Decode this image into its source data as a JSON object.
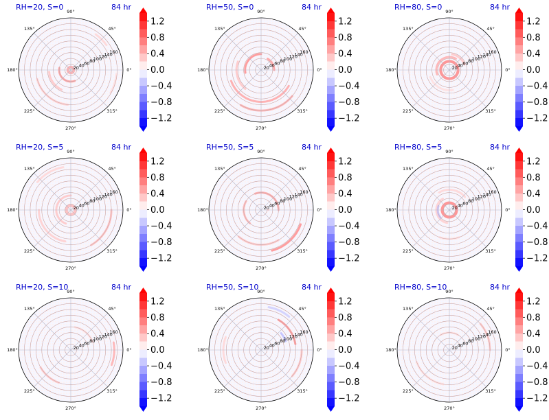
{
  "chart_data": {
    "type": "heatmap",
    "projection": "polar",
    "grid": true,
    "legend": "colorbar-right",
    "colormap": {
      "name": "bwr",
      "low": "#0000ff",
      "mid": "#ffffff",
      "high": "#ff0000"
    },
    "angle_ticks": [
      "0°",
      "45°",
      "90°",
      "135°",
      "180°",
      "225°",
      "270°",
      "315°"
    ],
    "radial_ticks": [
      "20",
      "40",
      "60",
      "80",
      "100",
      "120",
      "140",
      "160"
    ],
    "rlim": [
      0,
      180
    ],
    "colorbar_ticks": [
      "1.2",
      "0.8",
      "0.4",
      "0.0",
      "−0.4",
      "−0.8",
      "−1.2"
    ],
    "colorbar_range": [
      -1.4,
      1.4
    ],
    "panels": [
      {
        "title": "RH=20, S=0",
        "time": "84 hr",
        "features": [
          {
            "kind": "ring",
            "r": 10,
            "value": 0.5
          },
          {
            "kind": "arc",
            "r": 40,
            "from": 170,
            "to": 290,
            "value": 0.6
          },
          {
            "kind": "arc",
            "r": 75,
            "from": 185,
            "to": 245,
            "value": 0.35
          },
          {
            "kind": "arc",
            "r": 120,
            "from": 195,
            "to": 265,
            "value": 0.3
          },
          {
            "kind": "arc",
            "r": 150,
            "from": 35,
            "to": 55,
            "value": 0.25
          },
          {
            "kind": "arc",
            "r": 158,
            "from": 330,
            "to": 355,
            "value": 0.2
          }
        ]
      },
      {
        "title": "RH=50, S=0",
        "time": "84 hr",
        "features": [
          {
            "kind": "arc",
            "r": 55,
            "from": 90,
            "to": 190,
            "value": 0.7
          },
          {
            "kind": "arc",
            "r": 45,
            "from": 0,
            "to": 60,
            "value": 0.6
          },
          {
            "kind": "arc",
            "r": 110,
            "from": 200,
            "to": 330,
            "value": 0.55
          },
          {
            "kind": "arc",
            "r": 140,
            "from": 240,
            "to": 320,
            "value": 0.5
          },
          {
            "kind": "arc",
            "r": 85,
            "from": 160,
            "to": 230,
            "value": 0.35
          }
        ]
      },
      {
        "title": "RH=80, S=0",
        "time": "84 hr",
        "features": [
          {
            "kind": "ring",
            "r": 30,
            "value": 0.7
          },
          {
            "kind": "arc",
            "r": 45,
            "from": 60,
            "to": 200,
            "value": 0.5
          },
          {
            "kind": "arc",
            "r": 55,
            "from": 20,
            "to": 80,
            "value": 0.35
          },
          {
            "kind": "arc",
            "r": 70,
            "from": 200,
            "to": 280,
            "value": 0.2
          }
        ]
      },
      {
        "title": "RH=20, S=5",
        "time": "84 hr",
        "features": [
          {
            "kind": "ring",
            "r": 15,
            "value": 0.4
          },
          {
            "kind": "arc",
            "r": 50,
            "from": 90,
            "to": 250,
            "value": 0.35
          },
          {
            "kind": "arc",
            "r": 110,
            "from": 180,
            "to": 260,
            "value": 0.3
          },
          {
            "kind": "arc",
            "r": 140,
            "from": 300,
            "to": 360,
            "value": 0.4
          },
          {
            "kind": "arc",
            "r": 150,
            "from": 100,
            "to": 140,
            "value": 0.25
          }
        ]
      },
      {
        "title": "RH=50, S=5",
        "time": "84 hr",
        "features": [
          {
            "kind": "arc",
            "r": 60,
            "from": 0,
            "to": 110,
            "value": 0.55
          },
          {
            "kind": "arc",
            "r": 60,
            "from": 150,
            "to": 230,
            "value": 0.45
          },
          {
            "kind": "arc",
            "r": 145,
            "from": 285,
            "to": 340,
            "value": 0.7
          },
          {
            "kind": "arc",
            "r": 120,
            "from": 230,
            "to": 300,
            "value": 0.35
          },
          {
            "kind": "arc",
            "r": 25,
            "from": 0,
            "to": 360,
            "value": 0.3
          }
        ]
      },
      {
        "title": "RH=80, S=5",
        "time": "84 hr",
        "features": [
          {
            "kind": "ring",
            "r": 25,
            "value": 0.7
          },
          {
            "kind": "arc",
            "r": 45,
            "from": 120,
            "to": 260,
            "value": 0.3
          },
          {
            "kind": "arc",
            "r": 40,
            "from": 160,
            "to": 220,
            "value": -0.35
          },
          {
            "kind": "arc",
            "r": 70,
            "from": 40,
            "to": 120,
            "value": 0.25
          },
          {
            "kind": "arc",
            "r": 100,
            "from": 250,
            "to": 290,
            "value": 0.2
          }
        ]
      },
      {
        "title": "RH=20, S=10",
        "time": "84 hr",
        "features": [
          {
            "kind": "arc",
            "r": 150,
            "from": 340,
            "to": 370,
            "value": 0.5
          },
          {
            "kind": "arc",
            "r": 120,
            "from": 210,
            "to": 250,
            "value": 0.35
          },
          {
            "kind": "arc",
            "r": 80,
            "from": 20,
            "to": 80,
            "value": 0.2
          }
        ]
      },
      {
        "title": "RH=50, S=10",
        "time": "84 hr",
        "features": [
          {
            "kind": "arc",
            "r": 120,
            "from": 10,
            "to": 60,
            "value": 0.7
          },
          {
            "kind": "arc",
            "r": 90,
            "from": 20,
            "to": 40,
            "value": -0.4
          },
          {
            "kind": "arc",
            "r": 150,
            "from": 50,
            "to": 80,
            "value": -0.3
          },
          {
            "kind": "arc",
            "r": 140,
            "from": 320,
            "to": 360,
            "value": 0.35
          },
          {
            "kind": "arc",
            "r": 130,
            "from": 160,
            "to": 200,
            "value": 0.25
          }
        ]
      },
      {
        "title": "RH=80, S=10",
        "time": "84 hr",
        "features": [
          {
            "kind": "arc",
            "r": 140,
            "from": 0,
            "to": 40,
            "value": 0.35
          },
          {
            "kind": "arc",
            "r": 120,
            "from": 200,
            "to": 260,
            "value": 0.2
          },
          {
            "kind": "arc",
            "r": 60,
            "from": 60,
            "to": 120,
            "value": 0.2
          }
        ]
      }
    ]
  }
}
